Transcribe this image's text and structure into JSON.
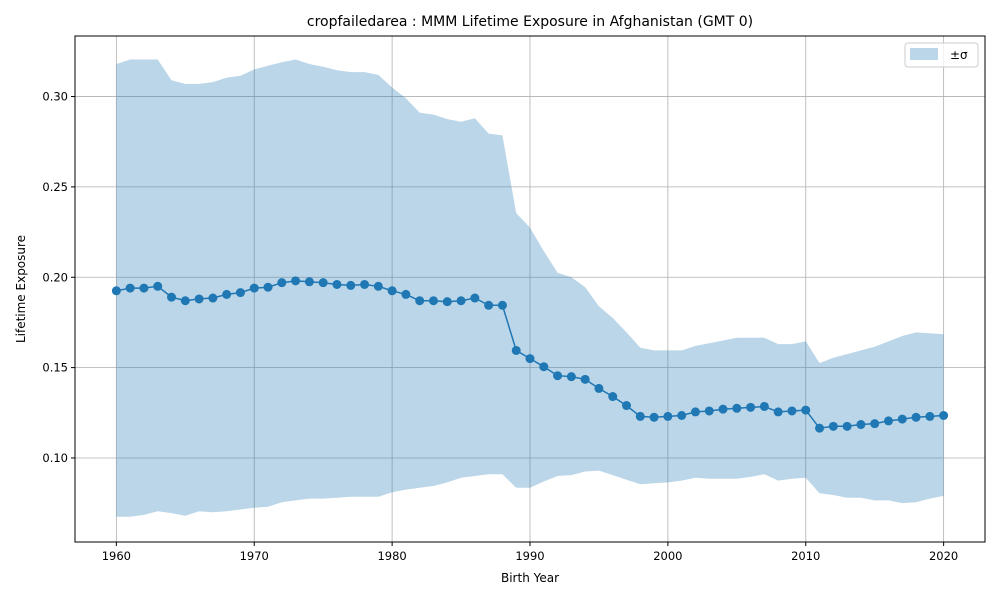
{
  "chart_data": {
    "type": "line",
    "title": "cropfailedarea : MMM Lifetime Exposure in Afghanistan (GMT 0)",
    "xlabel": "Birth Year",
    "ylabel": "Lifetime Exposure",
    "xlim": [
      1957,
      2023
    ],
    "ylim": [
      0.0535,
      0.3335
    ],
    "xticks": [
      1960,
      1970,
      1980,
      1990,
      2000,
      2010,
      2020
    ],
    "yticks": [
      0.1,
      0.15,
      0.2,
      0.25,
      0.3
    ],
    "ytick_labels": [
      "0.10",
      "0.15",
      "0.20",
      "0.25",
      "0.30"
    ],
    "grid": true,
    "legend": {
      "position": "top-right",
      "band_label": "±σ"
    },
    "colors": {
      "line": "#1f77b4",
      "band": "#1f77b4"
    },
    "x": [
      1960,
      1961,
      1962,
      1963,
      1964,
      1965,
      1966,
      1967,
      1968,
      1969,
      1970,
      1971,
      1972,
      1973,
      1974,
      1975,
      1976,
      1977,
      1978,
      1979,
      1980,
      1981,
      1982,
      1983,
      1984,
      1985,
      1986,
      1987,
      1988,
      1989,
      1990,
      1991,
      1992,
      1993,
      1994,
      1995,
      1996,
      1997,
      1998,
      1999,
      2000,
      2001,
      2002,
      2003,
      2004,
      2005,
      2006,
      2007,
      2008,
      2009,
      2010,
      2011,
      2012,
      2013,
      2014,
      2015,
      2016,
      2017,
      2018,
      2019,
      2020
    ],
    "series": [
      {
        "values": [
          0.1925,
          0.194,
          0.194,
          0.195,
          0.189,
          0.187,
          0.188,
          0.1885,
          0.1905,
          0.1915,
          0.194,
          0.1945,
          0.197,
          0.198,
          0.1975,
          0.197,
          0.196,
          0.1955,
          0.196,
          0.195,
          0.1925,
          0.1905,
          0.187,
          0.187,
          0.1865,
          0.187,
          0.1885,
          0.1845,
          0.1845,
          0.1595,
          0.155,
          0.1505,
          0.1455,
          0.145,
          0.1435,
          0.1385,
          0.134,
          0.129,
          0.123,
          0.1225,
          0.123,
          0.1235,
          0.1255,
          0.126,
          0.127,
          0.1275,
          0.128,
          0.1285,
          0.1255,
          0.126,
          0.1265,
          0.1165,
          0.1175,
          0.1175,
          0.1185,
          0.119,
          0.1205,
          0.1215,
          0.1225,
          0.123,
          0.1235
        ]
      }
    ],
    "band_upper": [
      0.318,
      0.3205,
      0.3205,
      0.3205,
      0.309,
      0.307,
      0.307,
      0.308,
      0.3105,
      0.3115,
      0.315,
      0.317,
      0.319,
      0.3205,
      0.318,
      0.3165,
      0.3145,
      0.3135,
      0.3135,
      0.312,
      0.305,
      0.299,
      0.291,
      0.29,
      0.2875,
      0.286,
      0.288,
      0.2795,
      0.2785,
      0.2355,
      0.2275,
      0.2145,
      0.2025,
      0.2,
      0.1945,
      0.184,
      0.1775,
      0.1695,
      0.161,
      0.1595,
      0.1595,
      0.1595,
      0.162,
      0.1635,
      0.165,
      0.1665,
      0.1665,
      0.1665,
      0.163,
      0.163,
      0.1645,
      0.1525,
      0.1555,
      0.1575,
      0.1595,
      0.1615,
      0.1645,
      0.1675,
      0.1695,
      0.169,
      0.1685
    ],
    "band_lower": [
      0.0675,
      0.0675,
      0.0685,
      0.0705,
      0.0695,
      0.068,
      0.0705,
      0.07,
      0.0705,
      0.0715,
      0.0725,
      0.073,
      0.0755,
      0.0765,
      0.0775,
      0.0775,
      0.078,
      0.0785,
      0.0785,
      0.0785,
      0.081,
      0.0825,
      0.0835,
      0.0845,
      0.0865,
      0.089,
      0.09,
      0.091,
      0.091,
      0.0835,
      0.0835,
      0.087,
      0.09,
      0.0905,
      0.0925,
      0.093,
      0.0905,
      0.088,
      0.0855,
      0.086,
      0.0865,
      0.0875,
      0.089,
      0.0885,
      0.0885,
      0.0885,
      0.0895,
      0.091,
      0.0875,
      0.0885,
      0.089,
      0.0805,
      0.0795,
      0.078,
      0.078,
      0.0765,
      0.0765,
      0.075,
      0.0755,
      0.0775,
      0.079
    ]
  }
}
